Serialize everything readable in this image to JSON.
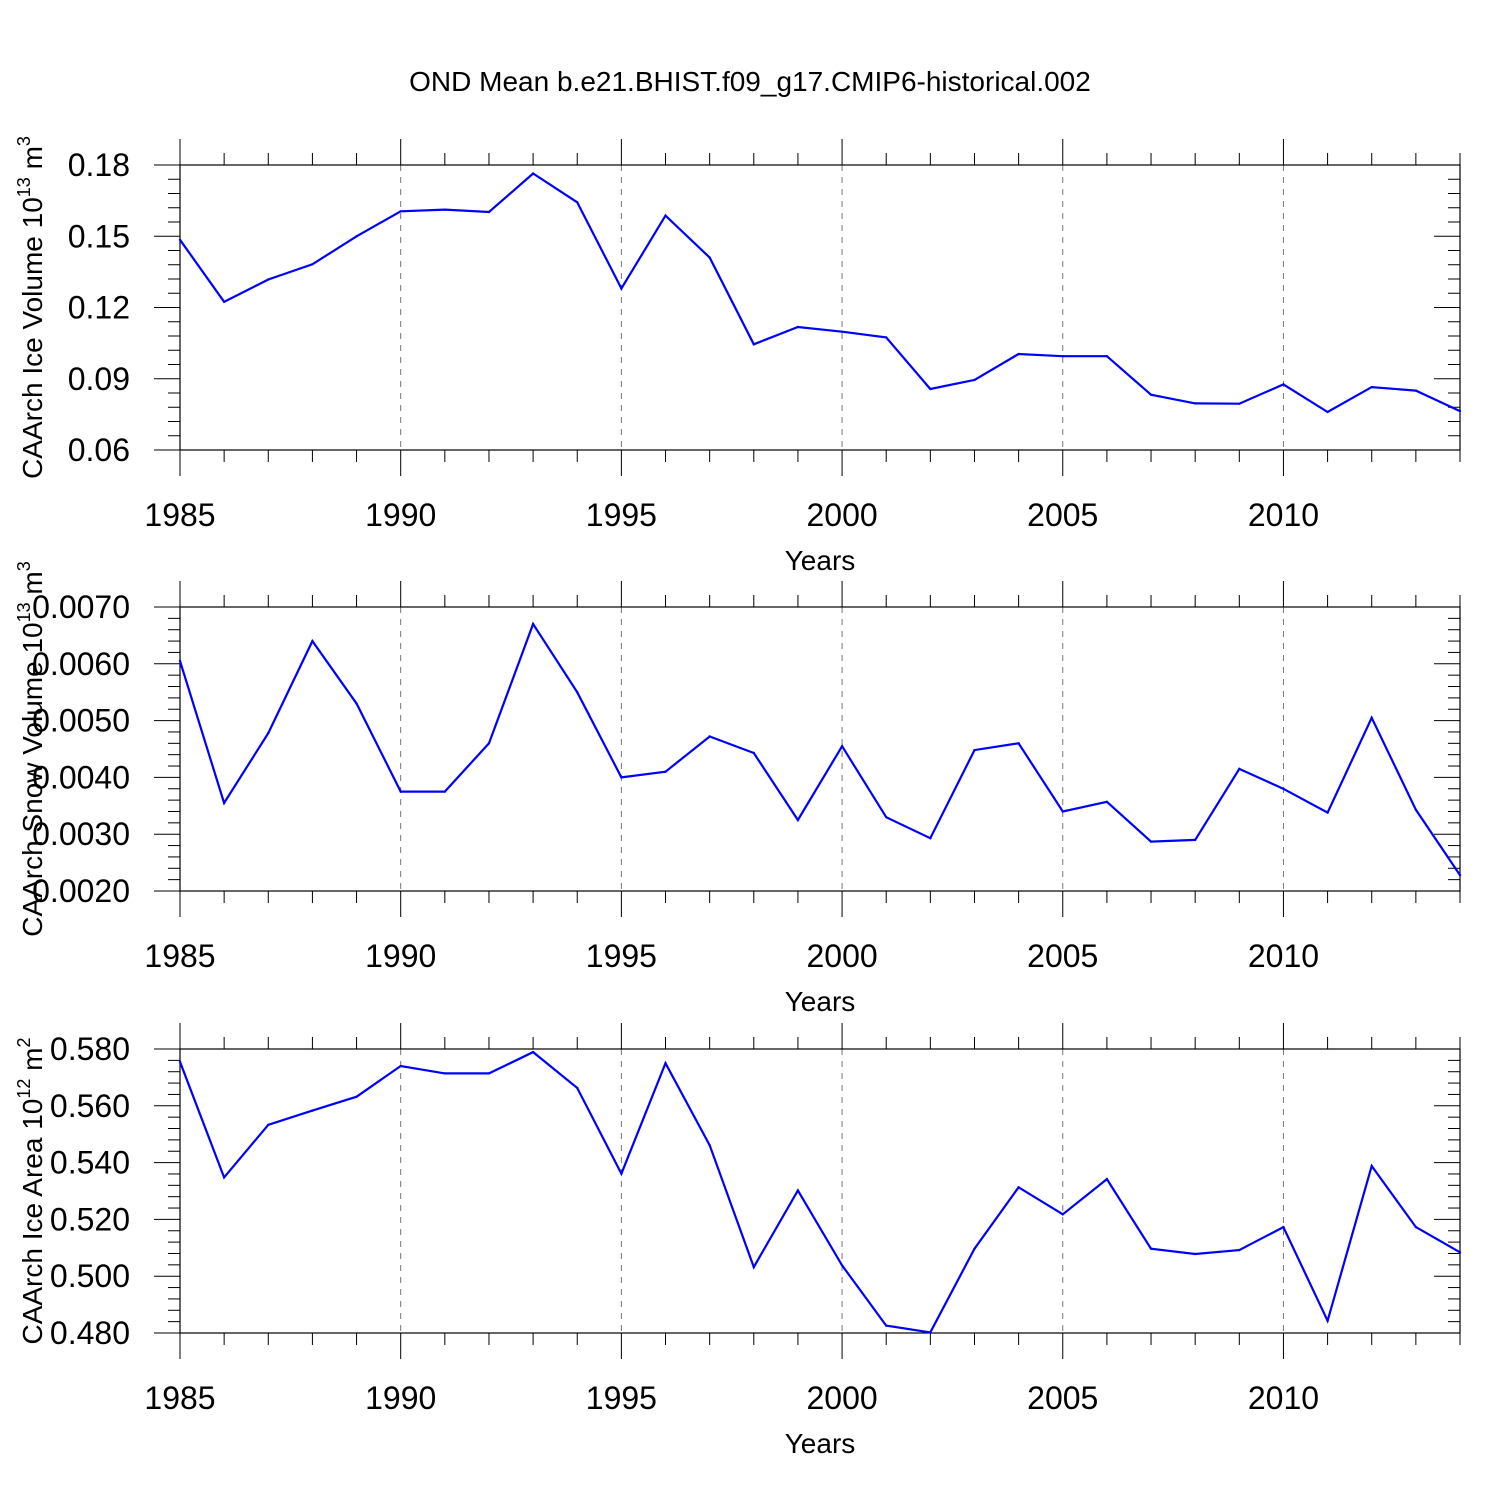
{
  "title": "OND Mean b.e21.BHIST.f09_g17.CMIP6-historical.002",
  "chart_data": [
    {
      "type": "line",
      "title": "",
      "xlabel": "Years",
      "ylabel": "CAArch Ice Volume 10",
      "ylabel_sup": "13",
      "ylabel_unit": "m",
      "ylabel_unit_sup": "3",
      "xlim": [
        1985,
        2014
      ],
      "ylim": [
        0.06,
        0.18
      ],
      "xticks": [
        1985,
        1990,
        1995,
        2000,
        2005,
        2010
      ],
      "yticks": [
        "0.06",
        "0.09",
        "0.12",
        "0.15",
        "0.18"
      ],
      "color": "#0000ff",
      "x": [
        1985,
        1986,
        1987,
        1988,
        1989,
        1990,
        1991,
        1992,
        1993,
        1994,
        1995,
        1996,
        1997,
        1998,
        1999,
        2000,
        2001,
        2002,
        2003,
        2004,
        2005,
        2006,
        2007,
        2008,
        2009,
        2010,
        2011,
        2012,
        2013,
        2014
      ],
      "values": [
        0.1485,
        0.1224,
        0.1318,
        0.1382,
        0.15,
        0.1605,
        0.1612,
        0.1602,
        0.1764,
        0.1643,
        0.128,
        0.1587,
        0.141,
        0.1045,
        0.1118,
        0.1098,
        0.1074,
        0.0857,
        0.0895,
        0.1004,
        0.0995,
        0.0995,
        0.0833,
        0.0796,
        0.0795,
        0.0876,
        0.076,
        0.0865,
        0.085,
        0.0764
      ]
    },
    {
      "type": "line",
      "title": "",
      "xlabel": "Years",
      "ylabel": "CAArch Snow Volume 10",
      "ylabel_sup": "13",
      "ylabel_unit": "m",
      "ylabel_unit_sup": "3",
      "xlim": [
        1985,
        2014
      ],
      "ylim": [
        0.002,
        0.007
      ],
      "xticks": [
        1985,
        1990,
        1995,
        2000,
        2005,
        2010
      ],
      "yticks": [
        "0.0020",
        "0.0030",
        "0.0040",
        "0.0050",
        "0.0060",
        "0.0070"
      ],
      "color": "#0000ff",
      "x": [
        1985,
        1986,
        1987,
        1988,
        1989,
        1990,
        1991,
        1992,
        1993,
        1994,
        1995,
        1996,
        1997,
        1998,
        1999,
        2000,
        2001,
        2002,
        2003,
        2004,
        2005,
        2006,
        2007,
        2008,
        2009,
        2010,
        2011,
        2012,
        2013,
        2014
      ],
      "values": [
        0.00605,
        0.00355,
        0.00478,
        0.0064,
        0.0053,
        0.00375,
        0.00375,
        0.0046,
        0.0067,
        0.0055,
        0.004,
        0.0041,
        0.00472,
        0.00443,
        0.00325,
        0.00455,
        0.0033,
        0.00293,
        0.00448,
        0.0046,
        0.0034,
        0.00357,
        0.00287,
        0.0029,
        0.00415,
        0.0038,
        0.00338,
        0.00505,
        0.00343,
        0.00228
      ]
    },
    {
      "type": "line",
      "title": "",
      "xlabel": "Years",
      "ylabel": "CAArch Ice Area 10",
      "ylabel_sup": "12",
      "ylabel_unit": "m",
      "ylabel_unit_sup": "2",
      "xlim": [
        1985,
        2014
      ],
      "ylim": [
        0.48,
        0.58
      ],
      "xticks": [
        1985,
        1990,
        1995,
        2000,
        2005,
        2010
      ],
      "yticks": [
        "0.480",
        "0.500",
        "0.520",
        "0.540",
        "0.560",
        "0.580"
      ],
      "color": "#0000ff",
      "x": [
        1985,
        1986,
        1987,
        1988,
        1989,
        1990,
        1991,
        1992,
        1993,
        1994,
        1995,
        1996,
        1997,
        1998,
        1999,
        2000,
        2001,
        2002,
        2003,
        2004,
        2005,
        2006,
        2007,
        2008,
        2009,
        2010,
        2011,
        2012,
        2013,
        2014
      ],
      "values": [
        0.5755,
        0.5348,
        0.5533,
        0.5583,
        0.5632,
        0.574,
        0.5714,
        0.5714,
        0.5789,
        0.5663,
        0.5361,
        0.575,
        0.5461,
        0.5032,
        0.5302,
        0.5038,
        0.4826,
        0.4802,
        0.5097,
        0.5313,
        0.5218,
        0.5342,
        0.5097,
        0.5078,
        0.5092,
        0.5173,
        0.4843,
        0.5388,
        0.5173,
        0.5084
      ]
    }
  ]
}
